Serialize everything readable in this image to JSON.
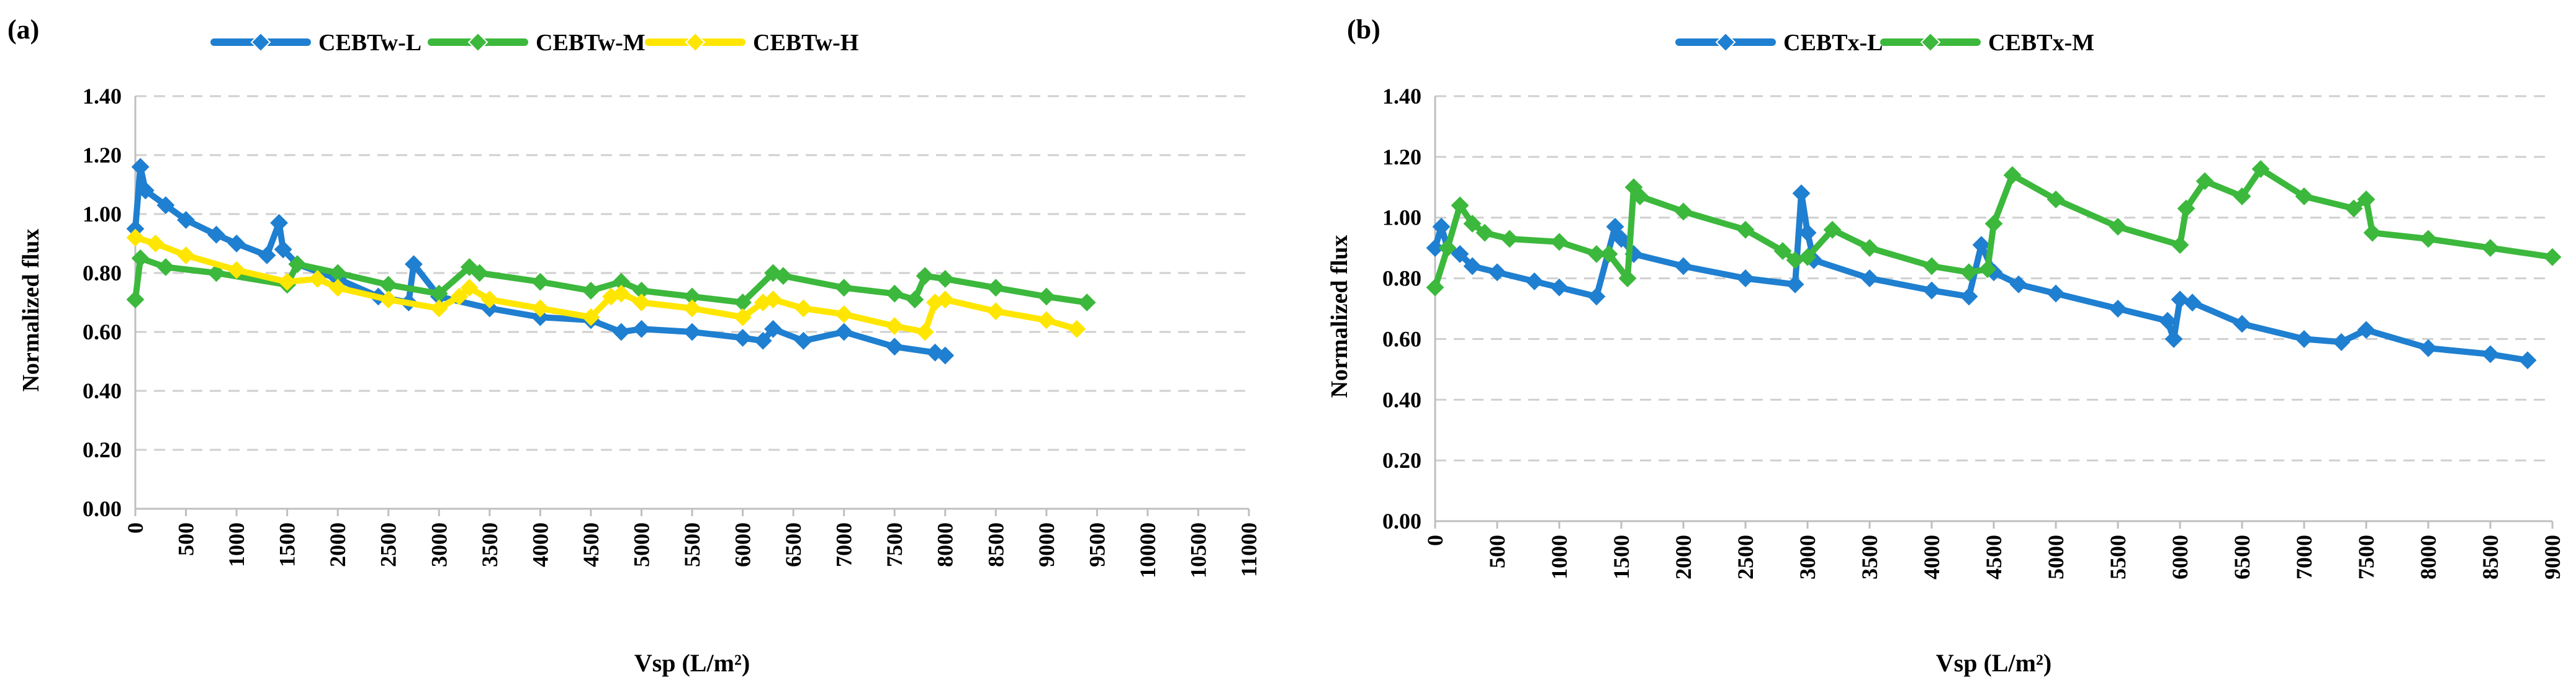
{
  "chart_data": [
    {
      "type": "line",
      "panel_label": "(a)",
      "title": "",
      "xlabel": "Vsp (L/m²)",
      "ylabel": "Normalized flux",
      "xlim": [
        0,
        11000
      ],
      "ylim": [
        0,
        1.4
      ],
      "x_ticks": [
        0,
        500,
        1000,
        1500,
        2000,
        2500,
        3000,
        3500,
        4000,
        4500,
        5000,
        5500,
        6000,
        6500,
        7000,
        7500,
        8000,
        8500,
        9000,
        9500,
        10000,
        10500,
        11000
      ],
      "y_ticks": [
        0,
        0.2,
        0.4,
        0.6,
        0.8,
        1.0,
        1.2,
        1.4
      ],
      "y_tick_labels": [
        "0.00",
        "0.20",
        "0.40",
        "0.60",
        "0.80",
        "1.00",
        "1.20",
        "1.40"
      ],
      "grid": "horizontal dashed",
      "legend_position": "top",
      "series": [
        {
          "name": "CEBTw-L",
          "color": "#1f7fd0",
          "x": [
            0,
            50,
            100,
            300,
            500,
            800,
            1000,
            1300,
            1420,
            1460,
            1600,
            2000,
            2400,
            2700,
            2750,
            3000,
            3500,
            4000,
            4500,
            4800,
            5000,
            5500,
            6000,
            6200,
            6300,
            6600,
            7000,
            7500,
            7900,
            8000
          ],
          "y": [
            0.95,
            1.16,
            1.08,
            1.03,
            0.98,
            0.93,
            0.9,
            0.86,
            0.97,
            0.88,
            0.83,
            0.78,
            0.72,
            0.7,
            0.83,
            0.72,
            0.68,
            0.65,
            0.64,
            0.6,
            0.61,
            0.6,
            0.58,
            0.57,
            0.61,
            0.57,
            0.6,
            0.55,
            0.53,
            0.52
          ]
        },
        {
          "name": "CEBTw-M",
          "color": "#3cb83c",
          "x": [
            0,
            50,
            300,
            800,
            1500,
            1600,
            2000,
            2500,
            3000,
            3300,
            3400,
            4000,
            4500,
            4800,
            5000,
            5500,
            6000,
            6300,
            6400,
            7000,
            7500,
            7700,
            7800,
            8000,
            8500,
            9000,
            9400
          ],
          "y": [
            0.71,
            0.85,
            0.82,
            0.8,
            0.76,
            0.83,
            0.8,
            0.76,
            0.73,
            0.82,
            0.8,
            0.77,
            0.74,
            0.77,
            0.74,
            0.72,
            0.7,
            0.8,
            0.79,
            0.75,
            0.73,
            0.71,
            0.79,
            0.78,
            0.75,
            0.72,
            0.7
          ]
        },
        {
          "name": "CEBTw-H",
          "color": "#ffe600",
          "x": [
            0,
            200,
            500,
            1000,
            1500,
            1800,
            2000,
            2500,
            3000,
            3200,
            3300,
            3500,
            4000,
            4500,
            4700,
            4800,
            5000,
            5500,
            6000,
            6200,
            6300,
            6600,
            7000,
            7500,
            7800,
            7900,
            8000,
            8500,
            9000,
            9300
          ],
          "y": [
            0.92,
            0.9,
            0.86,
            0.81,
            0.77,
            0.78,
            0.75,
            0.71,
            0.68,
            0.72,
            0.75,
            0.71,
            0.68,
            0.65,
            0.72,
            0.73,
            0.7,
            0.68,
            0.65,
            0.7,
            0.71,
            0.68,
            0.66,
            0.62,
            0.6,
            0.7,
            0.71,
            0.67,
            0.64,
            0.61
          ]
        }
      ]
    },
    {
      "type": "line",
      "panel_label": "(b)",
      "title": "",
      "xlabel": "Vsp (L/m²)",
      "ylabel": "Normalized flux",
      "xlim": [
        0,
        9000
      ],
      "ylim": [
        0,
        1.4
      ],
      "x_ticks": [
        0,
        500,
        1000,
        1500,
        2000,
        2500,
        3000,
        3500,
        4000,
        4500,
        5000,
        5500,
        6000,
        6500,
        7000,
        7500,
        8000,
        8500,
        9000
      ],
      "y_ticks": [
        0,
        0.2,
        0.4,
        0.6,
        0.8,
        1.0,
        1.2,
        1.4
      ],
      "y_tick_labels": [
        "0.00",
        "0.20",
        "0.40",
        "0.60",
        "0.80",
        "1.00",
        "1.20",
        "1.40"
      ],
      "grid": "horizontal dashed",
      "legend_position": "top",
      "series": [
        {
          "name": "CEBTx-L",
          "color": "#1f7fd0",
          "x": [
            0,
            50,
            100,
            200,
            300,
            500,
            800,
            1000,
            1300,
            1450,
            1500,
            1600,
            2000,
            2500,
            2900,
            2950,
            3000,
            3050,
            3500,
            4000,
            4300,
            4400,
            4500,
            4700,
            5000,
            5500,
            5900,
            5950,
            6000,
            6100,
            6500,
            7000,
            7300,
            7500,
            8000,
            8500,
            8800
          ],
          "y": [
            0.9,
            0.97,
            0.9,
            0.88,
            0.84,
            0.82,
            0.79,
            0.77,
            0.74,
            0.97,
            0.93,
            0.88,
            0.84,
            0.8,
            0.78,
            1.08,
            0.95,
            0.86,
            0.8,
            0.76,
            0.74,
            0.91,
            0.82,
            0.78,
            0.75,
            0.7,
            0.66,
            0.6,
            0.73,
            0.72,
            0.65,
            0.6,
            0.59,
            0.63,
            0.57,
            0.55,
            0.53
          ]
        },
        {
          "name": "CEBTx-M",
          "color": "#3cb83c",
          "x": [
            0,
            100,
            200,
            300,
            400,
            600,
            1000,
            1300,
            1400,
            1550,
            1600,
            1650,
            2000,
            2500,
            2800,
            2900,
            3000,
            3200,
            3500,
            4000,
            4300,
            4450,
            4500,
            4650,
            5000,
            5500,
            6000,
            6050,
            6200,
            6500,
            6650,
            7000,
            7400,
            7500,
            7550,
            8000,
            8500,
            9000
          ],
          "y": [
            0.77,
            0.9,
            1.04,
            0.98,
            0.95,
            0.93,
            0.92,
            0.88,
            0.88,
            0.8,
            1.1,
            1.07,
            1.02,
            0.96,
            0.89,
            0.86,
            0.87,
            0.96,
            0.9,
            0.84,
            0.82,
            0.83,
            0.98,
            1.14,
            1.06,
            0.97,
            0.91,
            1.03,
            1.12,
            1.07,
            1.16,
            1.07,
            1.03,
            1.06,
            0.95,
            0.93,
            0.9,
            0.87
          ]
        }
      ]
    }
  ]
}
